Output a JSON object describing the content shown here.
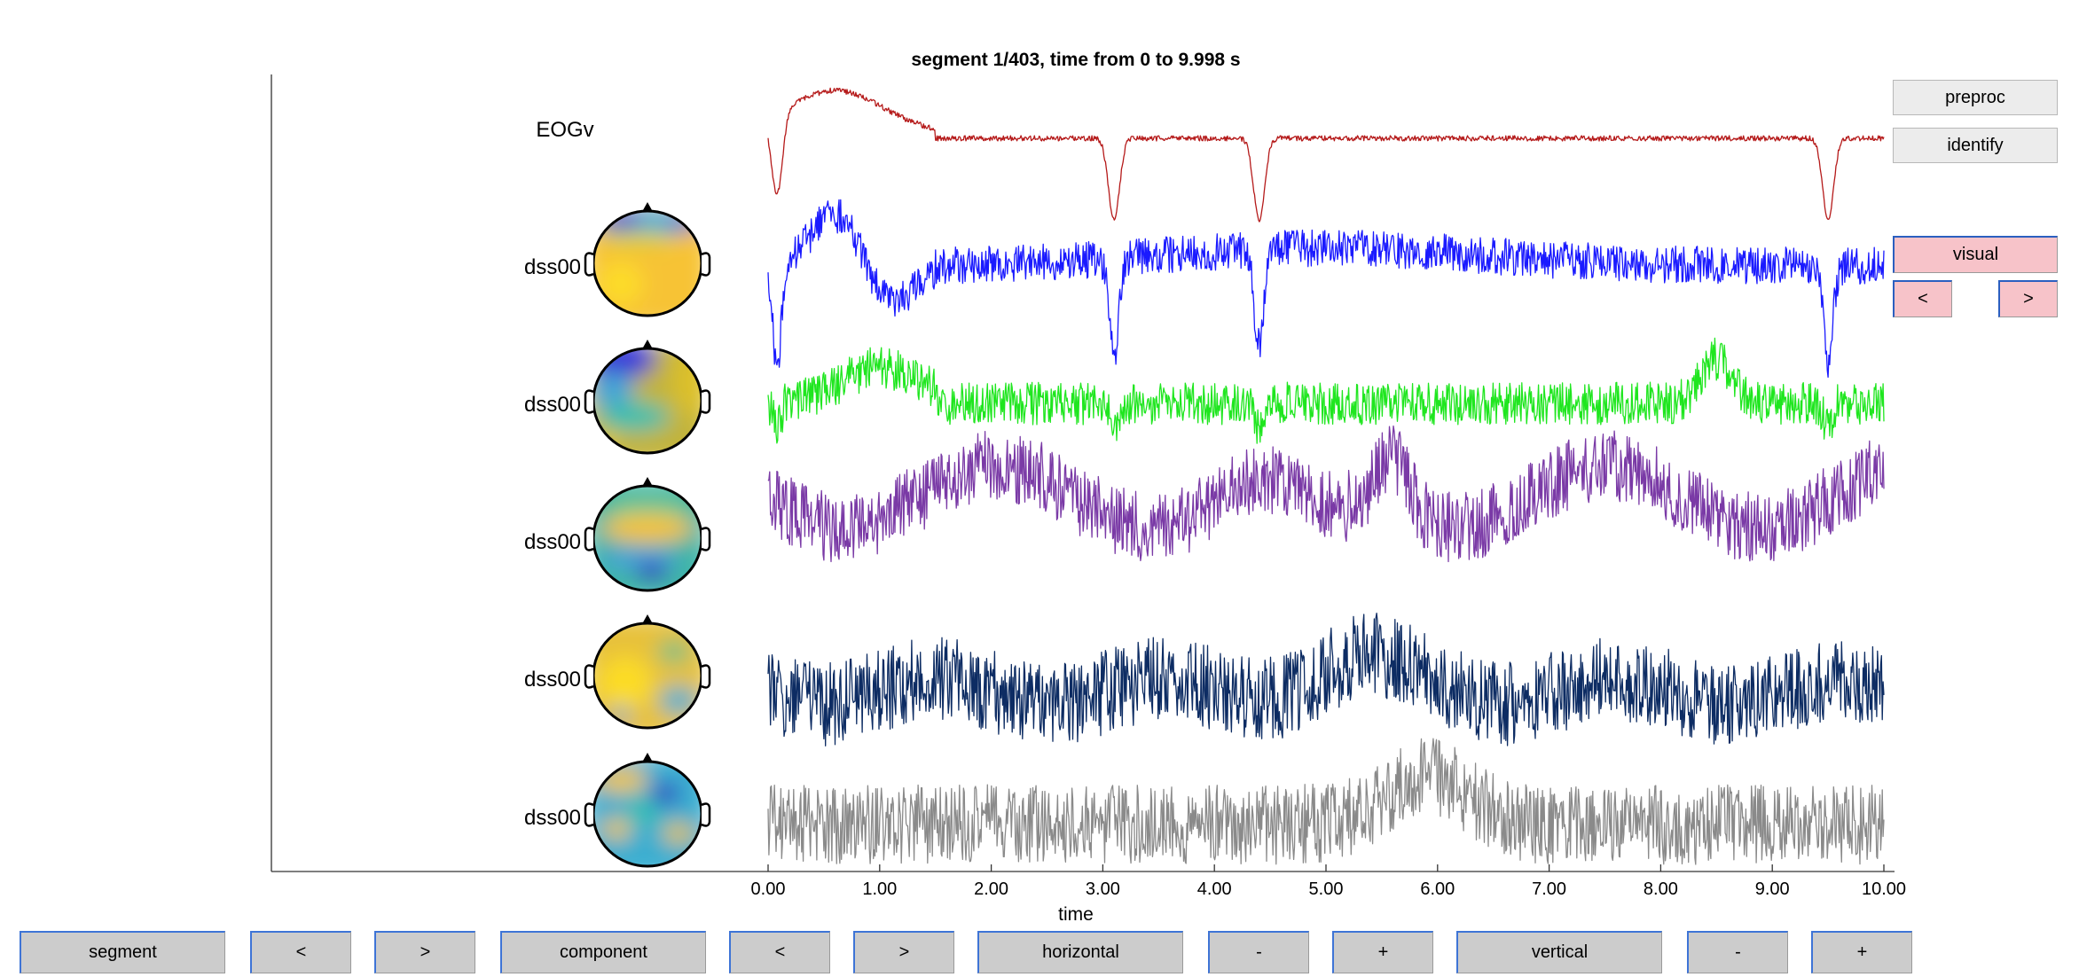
{
  "title": "segment 1/403, time from 0 to 9.998 s",
  "xlabel": "time",
  "xticks": [
    "0.00",
    "1.00",
    "2.00",
    "3.00",
    "4.00",
    "5.00",
    "6.00",
    "7.00",
    "8.00",
    "9.00",
    "10.00"
  ],
  "channels": [
    {
      "label": "EOGv",
      "color": "#b51a1a",
      "has_topo": false
    },
    {
      "label": "dss00",
      "color": "#1a1aff",
      "has_topo": true
    },
    {
      "label": "dss00",
      "color": "#1fe61f",
      "has_topo": true
    },
    {
      "label": "dss00",
      "color": "#7a3aa6",
      "has_topo": true
    },
    {
      "label": "dss00",
      "color": "#0d2c63",
      "has_topo": true
    },
    {
      "label": "dss00",
      "color": "#8a8a8a",
      "has_topo": true
    }
  ],
  "side_buttons": {
    "preproc": "preproc",
    "identify": "identify",
    "visual": "visual",
    "prev": "<",
    "next": ">"
  },
  "bottom_buttons": {
    "segment": "segment",
    "segment_prev": "<",
    "segment_next": ">",
    "component": "component",
    "component_prev": "<",
    "component_next": ">",
    "horizontal": "horizontal",
    "horizontal_minus": "-",
    "horizontal_plus": "+",
    "vertical": "vertical",
    "vertical_minus": "-",
    "vertical_plus": "+"
  }
}
